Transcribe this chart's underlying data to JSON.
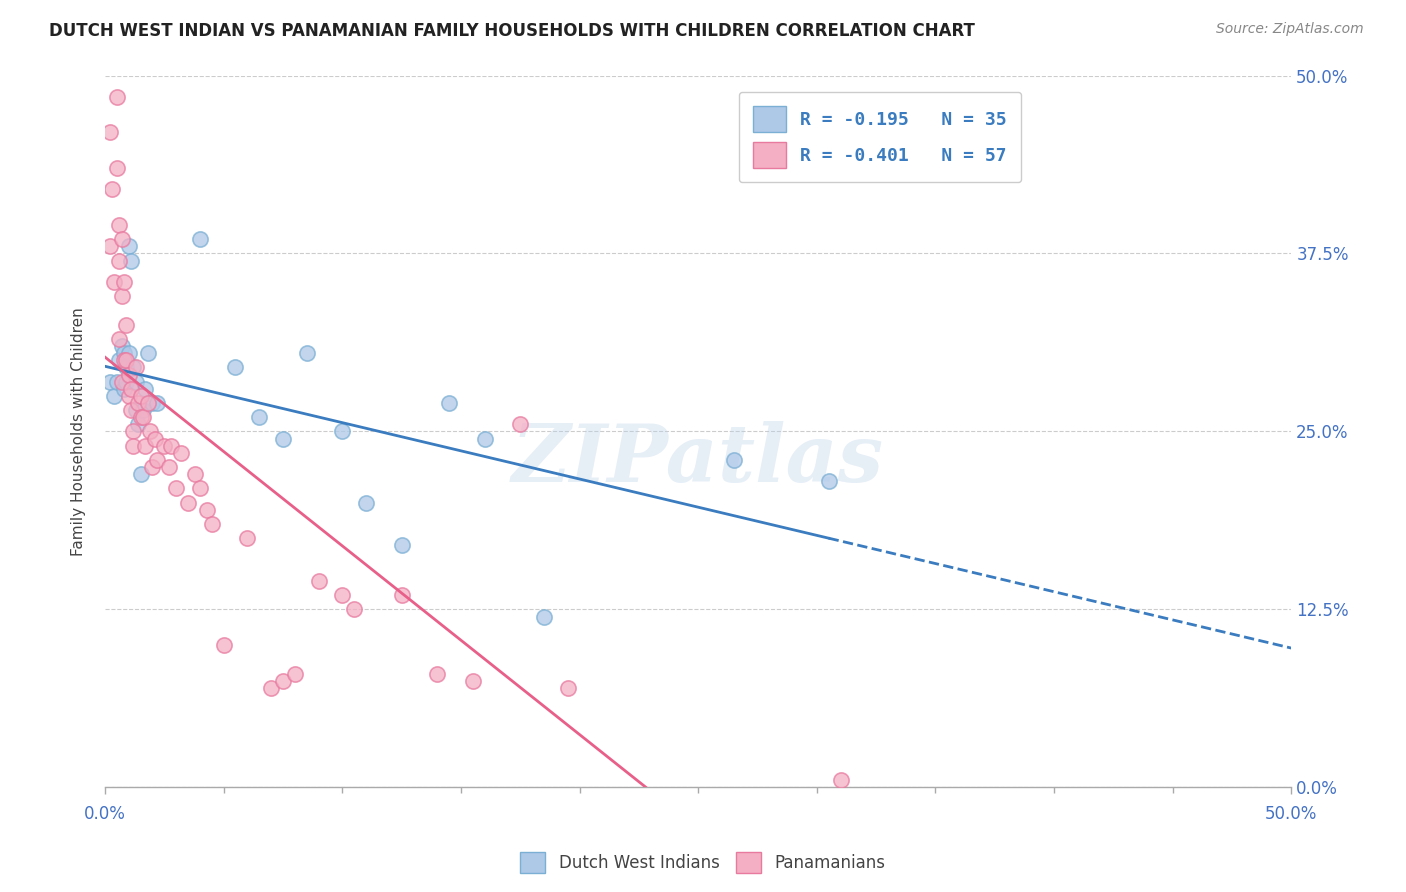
{
  "title": "DUTCH WEST INDIAN VS PANAMANIAN FAMILY HOUSEHOLDS WITH CHILDREN CORRELATION CHART",
  "source": "Source: ZipAtlas.com",
  "ylabel": "Family Households with Children",
  "legend_label1": "R = -0.195   N = 35",
  "legend_label2": "R = -0.401   N = 57",
  "legend_bottom1": "Dutch West Indians",
  "legend_bottom2": "Panamanians",
  "blue_color": "#aec8e8",
  "pink_color": "#f4afc4",
  "blue_fill_color": "#aec8e8",
  "pink_fill_color": "#f4afc4",
  "blue_edge_color": "#7bafd4",
  "pink_edge_color": "#e87aa0",
  "blue_line_color": "#3a7cbf",
  "pink_line_color": "#e8608a",
  "watermark": "ZIPatlas",
  "blue_scatter_x": [
    0.002,
    0.004,
    0.005,
    0.006,
    0.007,
    0.008,
    0.008,
    0.009,
    0.009,
    0.01,
    0.01,
    0.011,
    0.012,
    0.013,
    0.013,
    0.014,
    0.015,
    0.016,
    0.017,
    0.018,
    0.02,
    0.022,
    0.04,
    0.055,
    0.065,
    0.075,
    0.085,
    0.1,
    0.11,
    0.125,
    0.145,
    0.16,
    0.185,
    0.265,
    0.305
  ],
  "blue_scatter_y": [
    0.285,
    0.275,
    0.285,
    0.3,
    0.31,
    0.305,
    0.28,
    0.295,
    0.285,
    0.305,
    0.38,
    0.37,
    0.295,
    0.265,
    0.285,
    0.255,
    0.22,
    0.265,
    0.28,
    0.305,
    0.27,
    0.27,
    0.385,
    0.295,
    0.26,
    0.245,
    0.305,
    0.25,
    0.2,
    0.17,
    0.27,
    0.245,
    0.12,
    0.23,
    0.215
  ],
  "pink_scatter_x": [
    0.002,
    0.002,
    0.003,
    0.004,
    0.005,
    0.005,
    0.006,
    0.006,
    0.006,
    0.007,
    0.007,
    0.007,
    0.008,
    0.008,
    0.009,
    0.009,
    0.01,
    0.01,
    0.011,
    0.011,
    0.012,
    0.012,
    0.013,
    0.014,
    0.015,
    0.015,
    0.016,
    0.017,
    0.018,
    0.019,
    0.02,
    0.021,
    0.022,
    0.025,
    0.027,
    0.028,
    0.03,
    0.032,
    0.035,
    0.038,
    0.04,
    0.043,
    0.045,
    0.05,
    0.06,
    0.07,
    0.075,
    0.08,
    0.09,
    0.1,
    0.105,
    0.125,
    0.14,
    0.155,
    0.175,
    0.195,
    0.31
  ],
  "pink_scatter_y": [
    0.46,
    0.38,
    0.42,
    0.355,
    0.485,
    0.435,
    0.395,
    0.37,
    0.315,
    0.285,
    0.385,
    0.345,
    0.3,
    0.355,
    0.325,
    0.3,
    0.29,
    0.275,
    0.265,
    0.28,
    0.25,
    0.24,
    0.295,
    0.27,
    0.275,
    0.26,
    0.26,
    0.24,
    0.27,
    0.25,
    0.225,
    0.245,
    0.23,
    0.24,
    0.225,
    0.24,
    0.21,
    0.235,
    0.2,
    0.22,
    0.21,
    0.195,
    0.185,
    0.1,
    0.175,
    0.07,
    0.075,
    0.08,
    0.145,
    0.135,
    0.125,
    0.135,
    0.08,
    0.075,
    0.255,
    0.07,
    0.005
  ]
}
